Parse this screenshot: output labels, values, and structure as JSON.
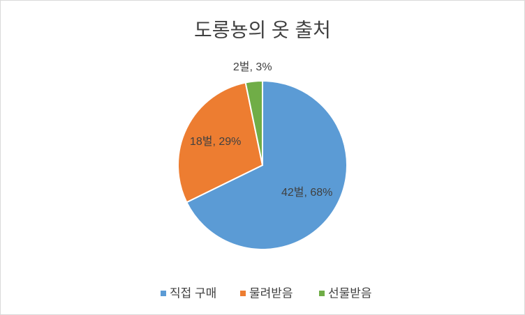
{
  "chart_data": {
    "type": "pie",
    "title": "도롱뇽의 옷 출처",
    "categories": [
      "직접 구매",
      "물려받음",
      "선물받음"
    ],
    "values": [
      42,
      18,
      2
    ],
    "value_labels": [
      "42벌, 68%",
      "18벌, 29%",
      "2벌, 3%"
    ],
    "colors": [
      "#5b9bd5",
      "#ed7d31",
      "#70ad47"
    ],
    "legend": "bottom"
  }
}
